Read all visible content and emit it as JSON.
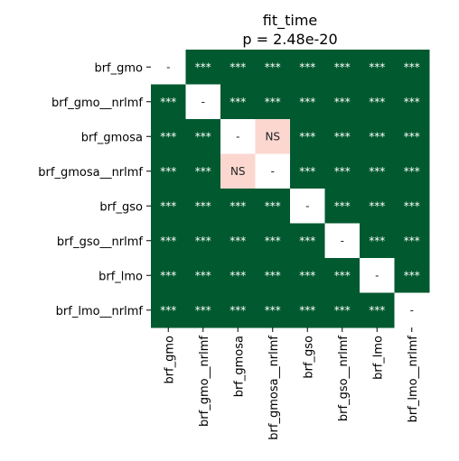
{
  "chart_data": {
    "type": "heatmap",
    "title": "fit_time",
    "subtitle": "p = 2.48e-20",
    "categories": [
      "brf_gmo",
      "brf_gmo__nrlmf",
      "brf_gmosa",
      "brf_gmosa__nrlmf",
      "brf_gso",
      "brf_gso__nrlmf",
      "brf_lmo",
      "brf_lmo__nrlmf"
    ],
    "cells": [
      [
        "-",
        "***",
        "***",
        "***",
        "***",
        "***",
        "***",
        "***"
      ],
      [
        "***",
        "-",
        "***",
        "***",
        "***",
        "***",
        "***",
        "***"
      ],
      [
        "***",
        "***",
        "-",
        "NS",
        "***",
        "***",
        "***",
        "***"
      ],
      [
        "***",
        "***",
        "NS",
        "-",
        "***",
        "***",
        "***",
        "***"
      ],
      [
        "***",
        "***",
        "***",
        "***",
        "-",
        "***",
        "***",
        "***"
      ],
      [
        "***",
        "***",
        "***",
        "***",
        "***",
        "-",
        "***",
        "***"
      ],
      [
        "***",
        "***",
        "***",
        "***",
        "***",
        "***",
        "-",
        "***"
      ],
      [
        "***",
        "***",
        "***",
        "***",
        "***",
        "***",
        "***",
        "-"
      ]
    ],
    "colors": {
      "***": "#00592f",
      "NS": "#fbd7d0",
      "-": "#ffffff"
    },
    "text_colors": {
      "***": "#ffffff",
      "NS": "#222222",
      "-": "#222222"
    },
    "colorbar": false,
    "grid": false
  }
}
